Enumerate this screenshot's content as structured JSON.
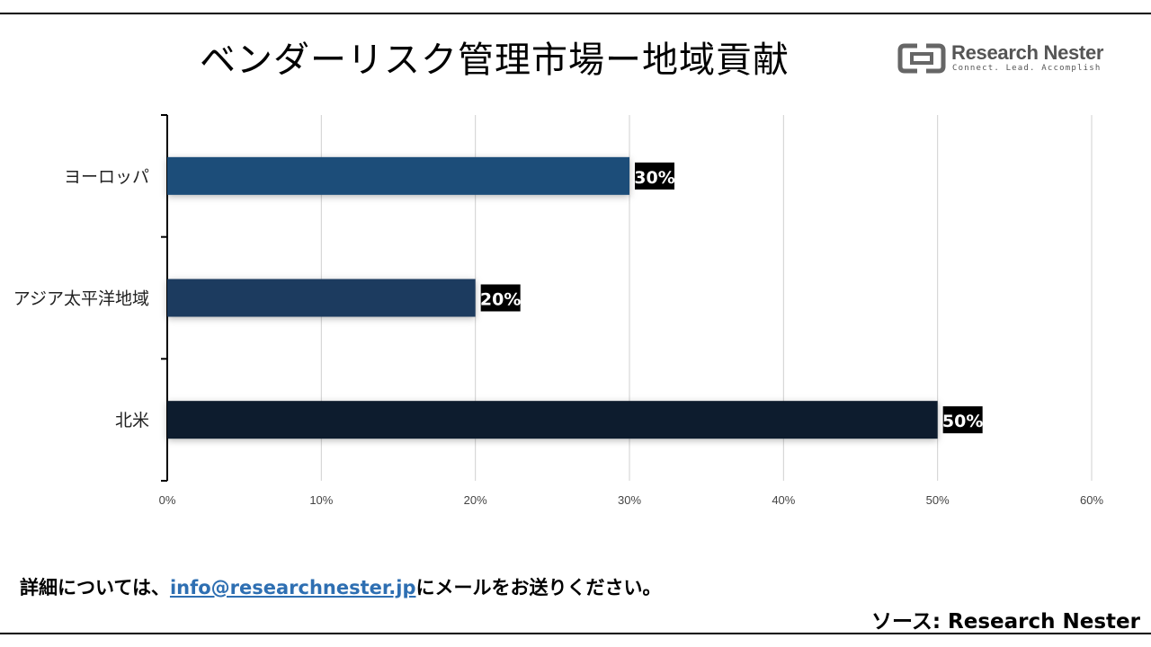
{
  "title": "ベンダーリスク管理市場ー地域貢献",
  "logo": {
    "name": "Research Nester",
    "tagline": "Connect. Lead. Accomplish"
  },
  "footer": {
    "prefix": "詳細については、",
    "email": "info@researchnester.jp",
    "suffix": "にメールをお送りください。"
  },
  "source": "ソース: Research Nester",
  "chart_data": {
    "type": "bar",
    "orientation": "horizontal",
    "categories": [
      "ヨーロッパ",
      "アジア太平洋地域",
      "北米"
    ],
    "values": [
      30,
      20,
      50
    ],
    "data_labels": [
      "30%",
      "20%",
      "50%"
    ],
    "bar_colors": [
      "#1f4e79",
      "#1a3a5e",
      "#0e1e2e"
    ],
    "xlim": [
      0,
      60
    ],
    "x_ticks": [
      "0%",
      "10%",
      "20%",
      "30%",
      "40%",
      "50%",
      "60%"
    ],
    "grid": true,
    "xlabel": "",
    "ylabel": ""
  }
}
